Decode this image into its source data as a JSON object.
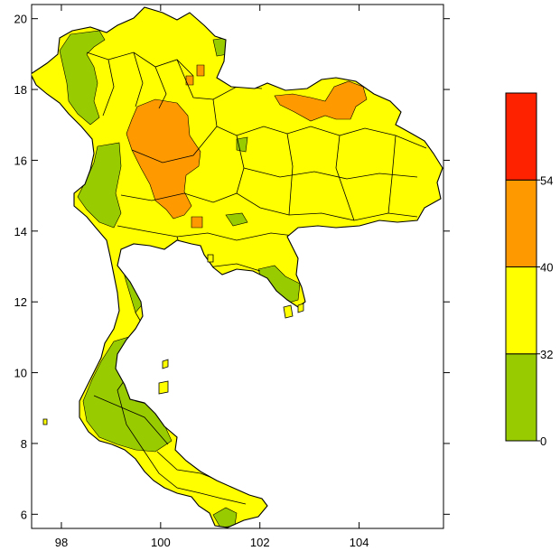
{
  "map": {
    "lon_range": [
      97.4,
      105.7
    ],
    "lat_range": [
      5.6,
      20.4
    ],
    "x_ticks": [
      {
        "value": 98,
        "label": "98"
      },
      {
        "value": 100,
        "label": "100"
      },
      {
        "value": 102,
        "label": "102"
      },
      {
        "value": 104,
        "label": "104"
      }
    ],
    "y_ticks": [
      {
        "value": 6,
        "label": "6"
      },
      {
        "value": 8,
        "label": "8"
      },
      {
        "value": 10,
        "label": "10"
      },
      {
        "value": 12,
        "label": "12"
      },
      {
        "value": 14,
        "label": "14"
      },
      {
        "value": 16,
        "label": "16"
      },
      {
        "value": 18,
        "label": "18"
      },
      {
        "value": 20,
        "label": "20"
      }
    ]
  },
  "legend": {
    "bins": [
      {
        "from": 0,
        "to": 32,
        "color": "#99cc00"
      },
      {
        "from": 32,
        "to": 40,
        "color": "#ffff00"
      },
      {
        "from": 40,
        "to": 54,
        "color": "#ff9900"
      },
      {
        "from": 54,
        "to": 70,
        "color": "#ff2200"
      }
    ],
    "labels": [
      "0",
      "32",
      "40",
      "54"
    ]
  }
}
